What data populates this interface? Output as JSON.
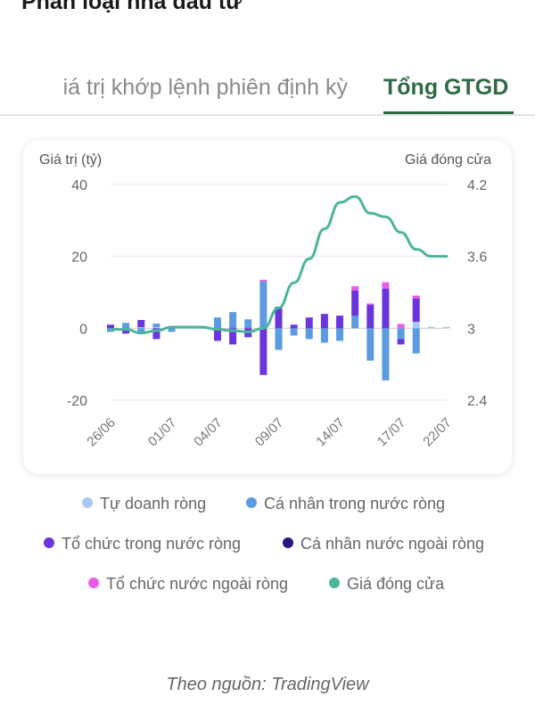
{
  "page_title": "Phân loại nhà đầu tư",
  "tabs": [
    {
      "label": "iá trị khớp lệnh phiên định kỳ",
      "active": false
    },
    {
      "label": "Tổng GTGD",
      "active": true
    }
  ],
  "source": "Theo nguồn: TradingView",
  "colors": {
    "active_tab": "#2e6b43"
  },
  "chart_data": {
    "type": "bar",
    "ylabel_left": "Giá trị (tỷ)",
    "ylabel_right": "Giá đóng cửa",
    "ylim_left": [
      -20,
      40
    ],
    "ylim_right": [
      2.4,
      4.2
    ],
    "left_ticks": [
      "40",
      "20",
      "0",
      "-20"
    ],
    "right_ticks": [
      "4.2",
      "3.6",
      "3",
      "2.4"
    ],
    "x_tick_labels": [
      "26/06",
      "01/07",
      "04/07",
      "09/07",
      "14/07",
      "17/07",
      "22/07"
    ],
    "x_tick_index": [
      0,
      4,
      7,
      11,
      15,
      19,
      22
    ],
    "sessions": 23,
    "series": [
      {
        "name": "Tự doanh ròng",
        "color": "#a9c8ef",
        "axis": "left",
        "values": [
          0,
          0,
          0.3,
          0.3,
          0,
          0,
          0,
          0,
          0,
          0,
          0,
          0,
          0,
          0,
          0,
          0,
          0,
          0,
          0,
          0,
          1.8,
          0.4,
          0.4
        ]
      },
      {
        "name": "Cá nhân trong nước ròng",
        "color": "#5b9be1",
        "axis": "left",
        "values": [
          -1,
          1.5,
          -1.5,
          1,
          -1,
          0,
          0,
          3,
          4.5,
          2.5,
          13,
          -6,
          -2,
          -3,
          -4,
          -3.5,
          3.5,
          -9,
          -14.5,
          -3,
          -7,
          0,
          0
        ]
      },
      {
        "name": "Tổ chức trong nước ròng",
        "color": "#6a35dc",
        "axis": "left",
        "values": [
          1,
          -1.5,
          2,
          -3,
          0,
          0,
          0,
          -3.5,
          -4.5,
          -2.5,
          -13,
          6,
          1,
          3,
          4,
          3.5,
          7,
          6.5,
          11,
          -1.5,
          6.5,
          0,
          0
        ]
      },
      {
        "name": "Cá nhân nước ngoài ròng",
        "color": "#2a1780",
        "axis": "left",
        "values": [
          0,
          0,
          0,
          0,
          0,
          0,
          0,
          0,
          0,
          0,
          0,
          0,
          0,
          0,
          0,
          0,
          0,
          0,
          0,
          0,
          0,
          0,
          0
        ]
      },
      {
        "name": "Tổ chức nước ngoài ròng",
        "color": "#e95be7",
        "axis": "left",
        "values": [
          0,
          0,
          0,
          0,
          0,
          0,
          0,
          0,
          0,
          0,
          0.5,
          0,
          0,
          0,
          0,
          0,
          1.2,
          0.4,
          1.8,
          1.2,
          0.8,
          0,
          0
        ]
      },
      {
        "name": "Giá đóng cửa",
        "color": "#4bb59a",
        "axis": "right",
        "kind": "line",
        "values": [
          2.99,
          2.99,
          2.96,
          2.98,
          3.01,
          3.01,
          3.01,
          2.99,
          2.98,
          2.97,
          3.0,
          3.17,
          3.38,
          3.58,
          3.83,
          4.05,
          4.1,
          3.96,
          3.93,
          3.8,
          3.66,
          3.6,
          3.6
        ]
      }
    ]
  }
}
